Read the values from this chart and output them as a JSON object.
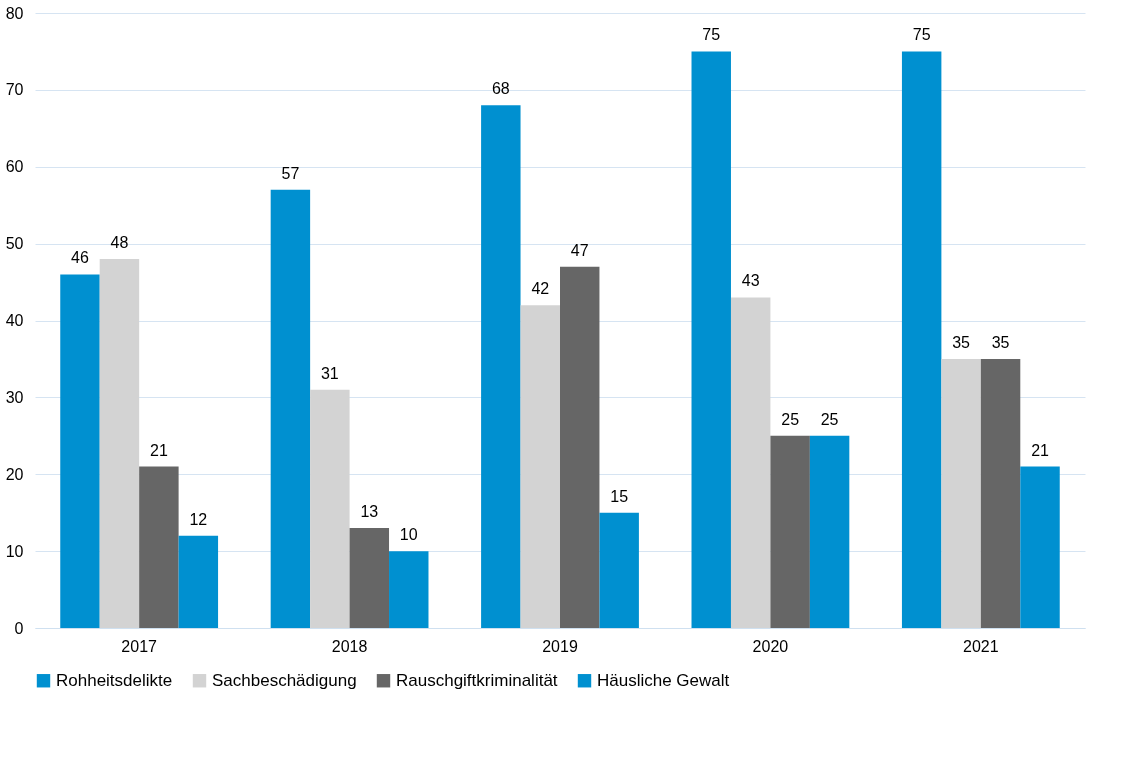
{
  "chart_data": {
    "type": "bar",
    "categories": [
      "2017",
      "2018",
      "2019",
      "2020",
      "2021"
    ],
    "series": [
      {
        "name": "Rohheitsdelikte",
        "color": "#0090d0",
        "values": [
          46,
          57,
          68,
          75,
          75
        ]
      },
      {
        "name": "Sachbeschädigung",
        "color": "#d3d3d3",
        "values": [
          48,
          31,
          42,
          43,
          35
        ]
      },
      {
        "name": "Rauschgiftkriminalität",
        "color": "#666666",
        "values": [
          21,
          13,
          47,
          25,
          35
        ]
      },
      {
        "name": "Häusliche Gewalt",
        "color": "#0090d0",
        "values": [
          12,
          10,
          15,
          25,
          21
        ]
      }
    ],
    "ylim": [
      0,
      80
    ],
    "yticks": [
      0,
      10,
      20,
      30,
      40,
      50,
      60,
      70,
      80
    ],
    "grid": "y",
    "legend": "bottom",
    "data_labels": true
  }
}
